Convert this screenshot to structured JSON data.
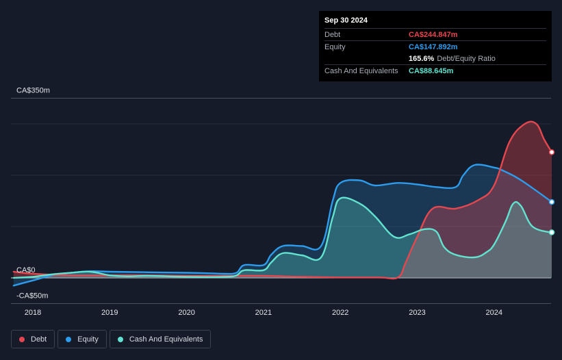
{
  "tooltip": {
    "date": "Sep 30 2024",
    "rows": [
      {
        "label": "Debt",
        "value": "CA$244.847m",
        "color": "#e5474f"
      },
      {
        "label": "Equity",
        "value": "CA$147.892m",
        "color": "#2d9cec"
      },
      {
        "label": "",
        "value": "165.6%",
        "extra": "Debt/Equity Ratio",
        "color": "#ffffff"
      },
      {
        "label": "Cash And Equivalents",
        "value": "CA$88.645m",
        "color": "#62e3d0"
      }
    ]
  },
  "legend": [
    {
      "label": "Debt",
      "color": "#e5474f"
    },
    {
      "label": "Equity",
      "color": "#2d9cec"
    },
    {
      "label": "Cash And Equivalents",
      "color": "#62e3d0"
    }
  ],
  "chart_data": {
    "type": "area",
    "x_ticks": [
      "2018",
      "2019",
      "2020",
      "2021",
      "2022",
      "2023",
      "2024"
    ],
    "y_tick_labels": [
      "CA$350m",
      "CA$0",
      "-CA$50m"
    ],
    "ylim": [
      -50,
      350
    ],
    "xlim": [
      2017.7,
      2024.75
    ],
    "grid": true,
    "legend_position": "bottom-left",
    "series": [
      {
        "name": "Debt",
        "color": "#e5474f",
        "x": [
          2017.75,
          2018.0,
          2018.5,
          2019.0,
          2019.5,
          2020.0,
          2020.5,
          2021.0,
          2021.5,
          2022.0,
          2022.5,
          2022.75,
          2022.85,
          2023.0,
          2023.2,
          2023.5,
          2023.8,
          2024.0,
          2024.2,
          2024.4,
          2024.55,
          2024.65,
          2024.75
        ],
        "values": [
          12,
          8,
          5,
          5,
          5,
          4,
          4,
          4,
          2,
          1,
          1,
          1,
          30,
          80,
          135,
          135,
          152,
          180,
          265,
          300,
          300,
          270,
          245
        ]
      },
      {
        "name": "Equity",
        "color": "#2d9cec",
        "x": [
          2017.75,
          2018.0,
          2018.25,
          2018.5,
          2018.75,
          2019.0,
          2019.5,
          2020.0,
          2020.3,
          2020.5,
          2020.65,
          2020.75,
          2021.0,
          2021.1,
          2021.25,
          2021.5,
          2021.75,
          2021.9,
          2022.0,
          2022.25,
          2022.45,
          2022.75,
          2023.0,
          2023.25,
          2023.5,
          2023.6,
          2023.75,
          2024.0,
          2024.1,
          2024.3,
          2024.5,
          2024.75
        ],
        "values": [
          -15,
          -5,
          5,
          10,
          13,
          12,
          11,
          10,
          9,
          8,
          10,
          25,
          25,
          45,
          62,
          62,
          62,
          150,
          185,
          190,
          180,
          185,
          182,
          177,
          177,
          200,
          220,
          215,
          210,
          195,
          175,
          148
        ]
      },
      {
        "name": "Cash And Equivalents",
        "color": "#62e3d0",
        "x": [
          2017.75,
          2018.0,
          2018.25,
          2018.5,
          2018.75,
          2019.0,
          2019.25,
          2019.5,
          2020.0,
          2020.5,
          2020.65,
          2020.75,
          2021.0,
          2021.1,
          2021.25,
          2021.5,
          2021.75,
          2021.9,
          2022.0,
          2022.25,
          2022.45,
          2022.7,
          2022.9,
          2023.1,
          2023.25,
          2023.35,
          2023.5,
          2023.75,
          2023.9,
          2024.0,
          2024.15,
          2024.25,
          2024.35,
          2024.5,
          2024.75
        ],
        "values": [
          0,
          2,
          7,
          10,
          12,
          5,
          3,
          4,
          2,
          2,
          5,
          15,
          15,
          30,
          48,
          44,
          40,
          118,
          155,
          145,
          120,
          80,
          85,
          95,
          90,
          60,
          45,
          40,
          50,
          65,
          110,
          145,
          140,
          100,
          88
        ]
      }
    ],
    "tooltip_point": {
      "x": 2024.75,
      "debt": 244.847,
      "equity": 147.892,
      "cash": 88.645
    }
  }
}
